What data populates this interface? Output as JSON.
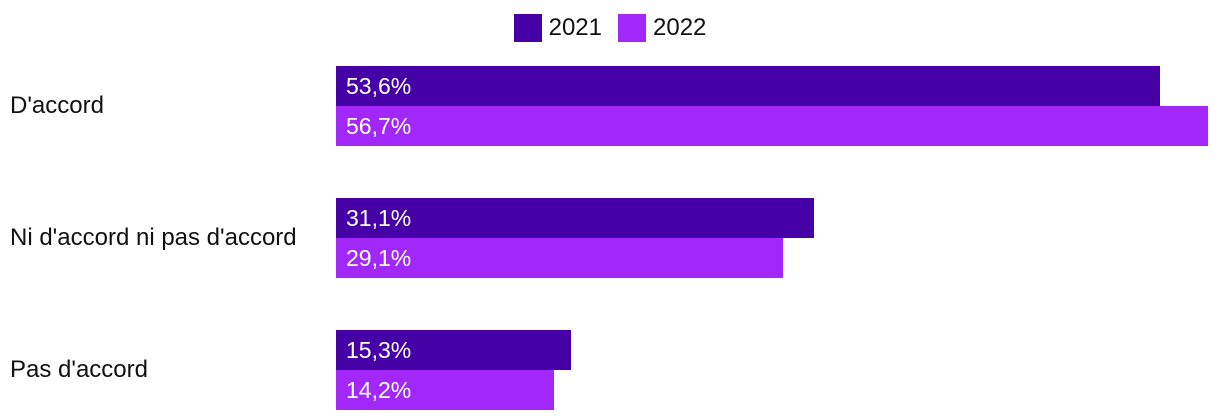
{
  "chart_data": {
    "type": "bar",
    "orientation": "horizontal",
    "title": "",
    "categories": [
      "D'accord",
      "Ni d'accord ni pas d'accord",
      "Pas d'accord"
    ],
    "series": [
      {
        "name": "2021",
        "color": "#4501A5",
        "values": [
          53.6,
          31.1,
          15.3
        ],
        "value_labels": [
          "53,6%",
          "31,1%",
          "15,3%"
        ]
      },
      {
        "name": "2022",
        "color": "#A228F9",
        "values": [
          56.7,
          29.1,
          14.2
        ],
        "value_labels": [
          "56,7%",
          "29,1%",
          "14,2%"
        ]
      }
    ],
    "xlim": [
      0,
      57.5
    ],
    "grid": false,
    "legend_position": "top-center",
    "value_label_position": "inside-start",
    "value_label_color": "#ffffff",
    "text_color": "#111111"
  }
}
